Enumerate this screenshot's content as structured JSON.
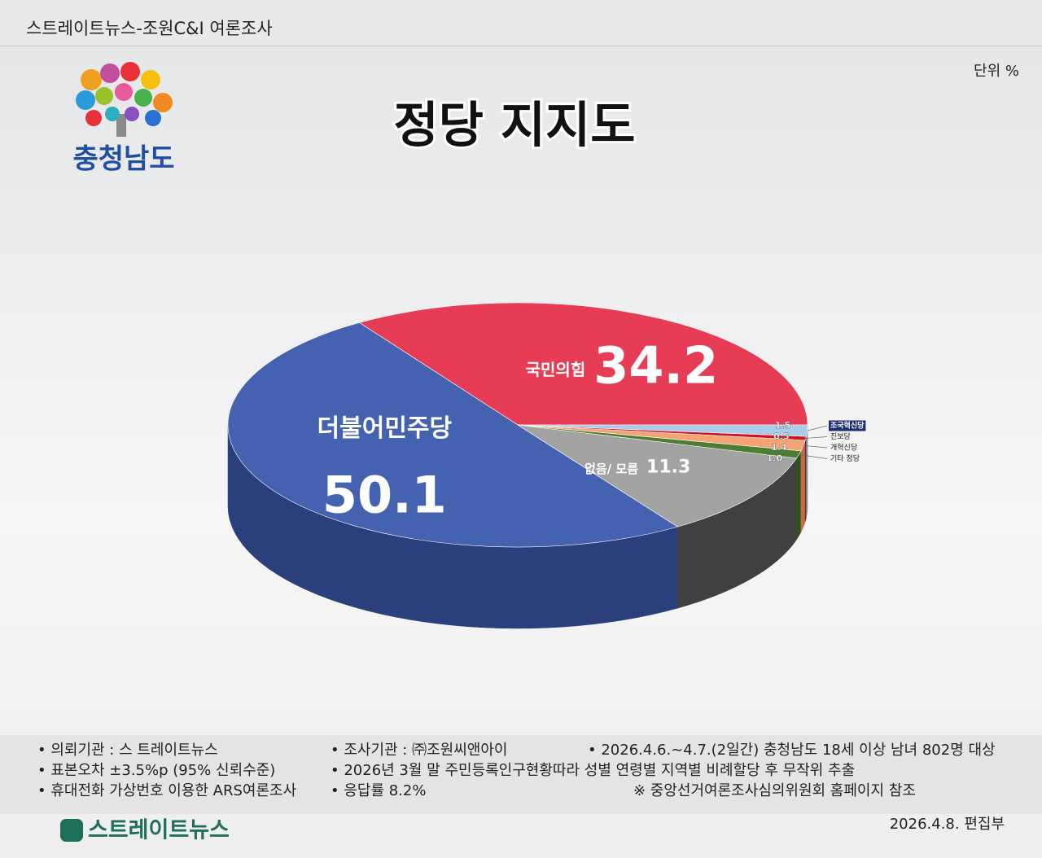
{
  "header": {
    "source": "스트레이트뉴스-조원C&I 여론조사",
    "unit": "단위 %",
    "logo": "충청남도"
  },
  "chart_data": {
    "type": "pie3d",
    "title": "정당 지지도",
    "categories": [
      "국민의힘",
      "더불어민주당",
      "없음/ 모름",
      "기타 정당",
      "개혁신당",
      "진보당",
      "조국혁신당"
    ],
    "values": [
      34.2,
      50.1,
      11.3,
      1.0,
      1.4,
      0.5,
      1.5
    ],
    "value_labels": [
      "34.2",
      "50.1",
      "11.3",
      "1.0",
      "1.4",
      "0.5",
      "1.5"
    ],
    "colors": [
      "#e63c55",
      "#4462b0",
      "#a3a3a3",
      "#4d7d32",
      "#f4a374",
      "#d7101f",
      "#a9cce9"
    ],
    "side_colors": [
      "#b02a3e",
      "#2a3f7c",
      "#404040",
      "#2f5220",
      "#c07040",
      "#901010",
      "#6f93b5"
    ]
  },
  "notes": [
    [
      "• 의뢰기관 : 스 트레이트뉴스",
      "• 조사기관 : ㈜조원씨앤아이",
      "• 2026.4.6.~4.7.(2일간) 충청남도 18세 이상 남녀 802명 대상"
    ],
    [
      "• 표본오차 ±3.5%p (95% 신뢰수준)",
      "• 2026년 3월 말 주민등록인구현황따라 성별 연령별 지역별 비례할당 후 무작위 추출"
    ],
    [
      "• 휴대전화 가상번호 이용한 ARS여론조사",
      "• 응답률 8.2%",
      "※ 중앙선거여론조사심의위원회 홈페이지 참조"
    ]
  ],
  "footer": {
    "brand": "스트레이트뉴스",
    "date": "2026.4.8.  편집부"
  }
}
